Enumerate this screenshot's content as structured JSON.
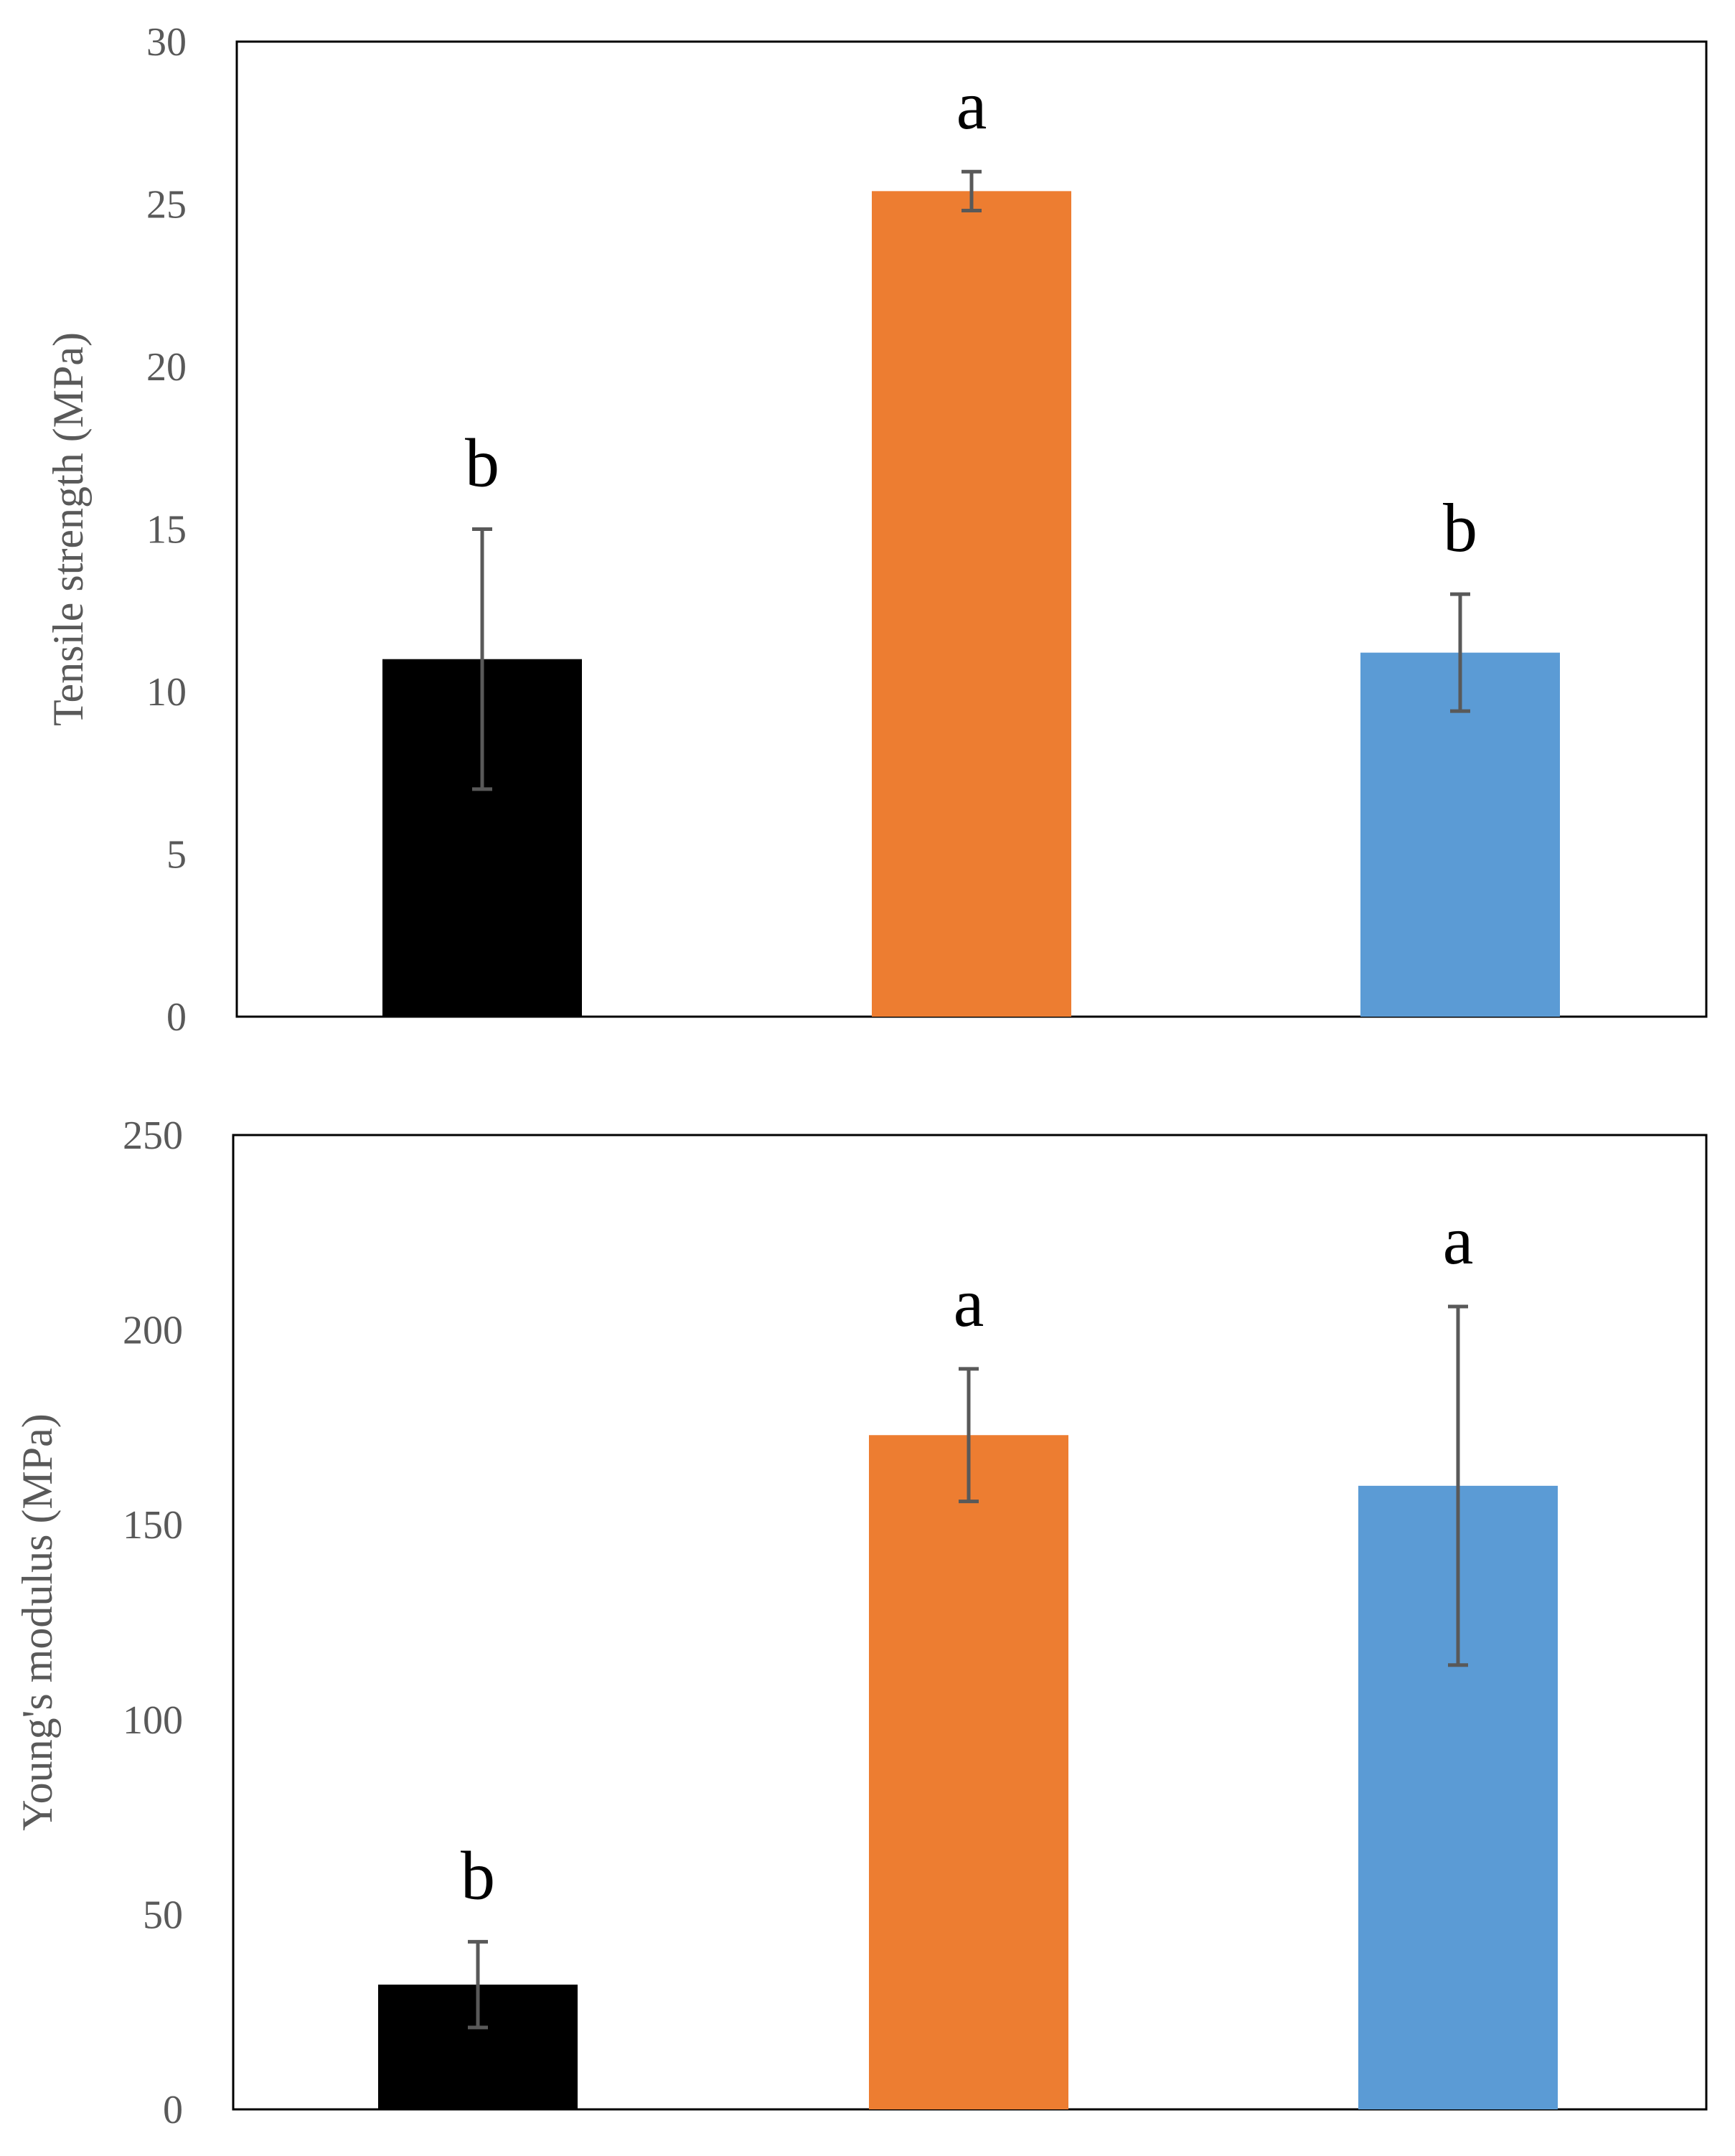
{
  "chart_data": [
    {
      "type": "bar",
      "categories": [
        "",
        "",
        ""
      ],
      "ylabel": "Tensile strength (MPa)",
      "ylim": [
        0,
        30
      ],
      "yticks": [
        0,
        5,
        10,
        15,
        20,
        25,
        30
      ],
      "values": [
        11.0,
        25.4,
        11.2
      ],
      "error_low": [
        7.0,
        24.8,
        9.4
      ],
      "error_high": [
        15.0,
        26.0,
        13.0
      ],
      "colors": [
        "#000000",
        "#ED7D31",
        "#5B9BD5"
      ],
      "annotations": [
        "b",
        "a",
        "b"
      ],
      "grid": false,
      "legend": "none"
    },
    {
      "type": "bar",
      "categories": [
        "",
        "",
        ""
      ],
      "ylabel": "Young's modulus (MPa)",
      "ylim": [
        0,
        250
      ],
      "yticks": [
        0,
        50,
        100,
        150,
        200,
        250
      ],
      "values": [
        32,
        173,
        160
      ],
      "error_low": [
        21,
        156,
        114
      ],
      "error_high": [
        43,
        190,
        206
      ],
      "colors": [
        "#000000",
        "#ED7D31",
        "#5B9BD5"
      ],
      "annotations": [
        "b",
        "a",
        "a"
      ],
      "grid": false,
      "legend": "none"
    }
  ]
}
